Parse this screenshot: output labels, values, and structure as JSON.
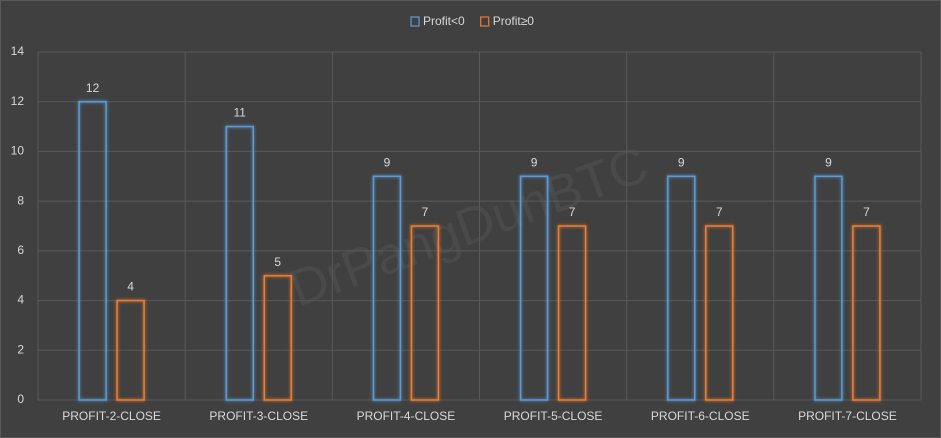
{
  "chart_data": {
    "type": "bar",
    "watermark": "DrPangDunBTC",
    "categories": [
      "PROFIT-2-CLOSE",
      "PROFIT-3-CLOSE",
      "PROFIT-4-CLOSE",
      "PROFIT-5-CLOSE",
      "PROFIT-6-CLOSE",
      "PROFIT-7-CLOSE"
    ],
    "series": [
      {
        "name": "Profit<0",
        "color": "#5b9bd5",
        "values": [
          12,
          11,
          9,
          9,
          9,
          9
        ]
      },
      {
        "name": "Profit≥0",
        "color": "#ed7d31",
        "values": [
          4,
          5,
          7,
          7,
          7,
          7
        ]
      }
    ],
    "ylim": [
      0,
      14
    ],
    "yticks": [
      0,
      2,
      4,
      6,
      8,
      10,
      12,
      14
    ],
    "grid": true,
    "legend": "top"
  }
}
